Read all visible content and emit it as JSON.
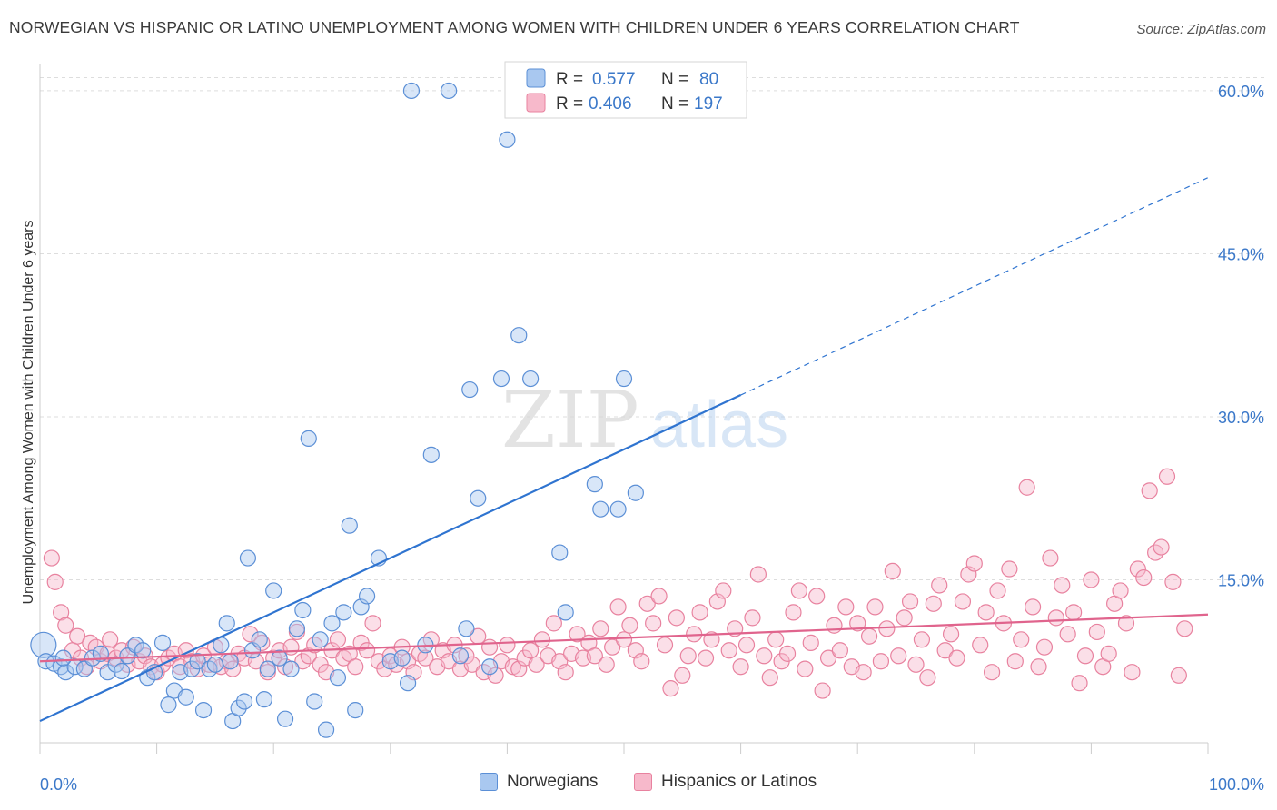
{
  "header": {
    "title": "NORWEGIAN VS HISPANIC OR LATINO UNEMPLOYMENT AMONG WOMEN WITH CHILDREN UNDER 6 YEARS CORRELATION CHART",
    "source": "Source: ZipAtlas.com"
  },
  "watermark": {
    "zip": "ZIP",
    "atlas": "atlas"
  },
  "colors": {
    "norwegians_fill": "#a9c8f0",
    "norwegians_stroke": "#5b8fd6",
    "norwegians_line": "#2f74d0",
    "hispanics_fill": "#f7b9cb",
    "hispanics_stroke": "#e8829f",
    "hispanics_line": "#e0648d",
    "axis_text": "#3b78c9",
    "grid": "#dddddd"
  },
  "stats_legend": {
    "rows": [
      {
        "r_label": "R =",
        "r_value": "0.577",
        "n_label": "N =",
        "n_value": "80"
      },
      {
        "r_label": "R =",
        "r_value": "0.406",
        "n_label": "N =",
        "n_value": "197"
      }
    ]
  },
  "chart_data": {
    "type": "scatter",
    "title": "NORWEGIAN VS HISPANIC OR LATINO UNEMPLOYMENT AMONG WOMEN WITH CHILDREN UNDER 6 YEARS CORRELATION CHART",
    "xlabel": "",
    "ylabel": "Unemployment Among Women with Children Under 6 years",
    "xlim": [
      0,
      100
    ],
    "ylim": [
      0,
      62.5
    ],
    "x_tick_labels": [
      {
        "value": 0,
        "label": "0.0%"
      },
      {
        "value": 100,
        "label": "100.0%"
      }
    ],
    "y_tick_labels": [
      {
        "value": 15,
        "label": "15.0%"
      },
      {
        "value": 30,
        "label": "30.0%"
      },
      {
        "value": 45,
        "label": "45.0%"
      },
      {
        "value": 60,
        "label": "60.0%"
      }
    ],
    "grid": true,
    "legend_position": "bottom",
    "series": [
      {
        "name": "Norwegians",
        "r": 0.577,
        "n": 80,
        "trend": {
          "x0": 0,
          "y0": 2.0,
          "x1": 60,
          "y1": 32.0,
          "dash_to_x": 100,
          "dash_to_y": 52.0
        },
        "points": [
          [
            0.3,
            9.0
          ],
          [
            0.5,
            7.5
          ],
          [
            1.2,
            7.3
          ],
          [
            1.8,
            7.0
          ],
          [
            2.2,
            6.5
          ],
          [
            3.0,
            7.0
          ],
          [
            3.8,
            6.8
          ],
          [
            4.5,
            7.8
          ],
          [
            5.2,
            8.2
          ],
          [
            5.8,
            6.5
          ],
          [
            6.5,
            7.2
          ],
          [
            7.0,
            6.6
          ],
          [
            7.5,
            8.0
          ],
          [
            8.2,
            9.0
          ],
          [
            8.8,
            8.5
          ],
          [
            9.2,
            6.0
          ],
          [
            9.8,
            6.5
          ],
          [
            10.5,
            9.2
          ],
          [
            11.0,
            3.5
          ],
          [
            11.5,
            4.8
          ],
          [
            12.0,
            6.5
          ],
          [
            12.5,
            4.2
          ],
          [
            13.0,
            6.8
          ],
          [
            13.5,
            7.5
          ],
          [
            14.0,
            3.0
          ],
          [
            14.5,
            6.8
          ],
          [
            15.0,
            7.2
          ],
          [
            15.5,
            9.0
          ],
          [
            16.0,
            11.0
          ],
          [
            16.3,
            7.5
          ],
          [
            16.5,
            2.0
          ],
          [
            17.0,
            3.2
          ],
          [
            17.5,
            3.8
          ],
          [
            17.8,
            17.0
          ],
          [
            18.2,
            8.5
          ],
          [
            18.8,
            9.5
          ],
          [
            19.2,
            4.0
          ],
          [
            19.5,
            6.8
          ],
          [
            20.0,
            14.0
          ],
          [
            20.5,
            7.8
          ],
          [
            21.0,
            2.2
          ],
          [
            21.5,
            6.8
          ],
          [
            22.0,
            10.5
          ],
          [
            22.5,
            12.2
          ],
          [
            23.0,
            28.0
          ],
          [
            23.5,
            3.8
          ],
          [
            24.0,
            9.5
          ],
          [
            24.5,
            1.2
          ],
          [
            25.0,
            11.0
          ],
          [
            25.5,
            6.0
          ],
          [
            26.0,
            12.0
          ],
          [
            26.5,
            20.0
          ],
          [
            27.0,
            3.0
          ],
          [
            27.5,
            12.5
          ],
          [
            28.0,
            13.5
          ],
          [
            29.0,
            17.0
          ],
          [
            30.0,
            7.5
          ],
          [
            31.0,
            7.8
          ],
          [
            31.5,
            5.5
          ],
          [
            31.8,
            60.0
          ],
          [
            33.0,
            9.0
          ],
          [
            33.5,
            26.5
          ],
          [
            35.0,
            60.0
          ],
          [
            36.0,
            8.0
          ],
          [
            36.5,
            10.5
          ],
          [
            36.8,
            32.5
          ],
          [
            37.5,
            22.5
          ],
          [
            38.5,
            7.0
          ],
          [
            39.5,
            33.5
          ],
          [
            40.0,
            55.5
          ],
          [
            41.0,
            37.5
          ],
          [
            42.0,
            33.5
          ],
          [
            44.5,
            17.5
          ],
          [
            45.0,
            12.0
          ],
          [
            47.5,
            23.8
          ],
          [
            48.0,
            21.5
          ],
          [
            49.5,
            21.5
          ],
          [
            50.0,
            33.5
          ],
          [
            51.0,
            23.0
          ],
          [
            2.0,
            7.8
          ]
        ]
      },
      {
        "name": "Hispanics or Latinos",
        "r": 0.406,
        "n": 197,
        "trend": {
          "x0": 0,
          "y0": 7.5,
          "x1": 100,
          "y1": 11.8
        },
        "points": [
          [
            1.0,
            17.0
          ],
          [
            1.3,
            14.8
          ],
          [
            1.8,
            12.0
          ],
          [
            2.2,
            10.8
          ],
          [
            2.8,
            8.5
          ],
          [
            3.2,
            9.8
          ],
          [
            3.5,
            7.8
          ],
          [
            4.0,
            7.0
          ],
          [
            4.3,
            9.2
          ],
          [
            4.8,
            8.8
          ],
          [
            5.2,
            7.5
          ],
          [
            5.8,
            8.2
          ],
          [
            6.0,
            9.5
          ],
          [
            6.5,
            7.8
          ],
          [
            7.0,
            8.5
          ],
          [
            7.5,
            7.2
          ],
          [
            8.0,
            8.8
          ],
          [
            8.5,
            7.5
          ],
          [
            9.0,
            8.0
          ],
          [
            9.5,
            7.0
          ],
          [
            10.0,
            6.5
          ],
          [
            10.5,
            7.2
          ],
          [
            11.0,
            7.8
          ],
          [
            11.5,
            8.2
          ],
          [
            12.0,
            7.0
          ],
          [
            12.5,
            8.5
          ],
          [
            13.0,
            7.5
          ],
          [
            13.5,
            6.8
          ],
          [
            14.0,
            8.0
          ],
          [
            14.5,
            7.2
          ],
          [
            15.0,
            8.8
          ],
          [
            15.5,
            7.0
          ],
          [
            16.0,
            7.5
          ],
          [
            16.5,
            6.8
          ],
          [
            17.0,
            8.2
          ],
          [
            17.5,
            7.8
          ],
          [
            18.0,
            10.0
          ],
          [
            18.5,
            7.5
          ],
          [
            19.0,
            9.2
          ],
          [
            19.5,
            6.5
          ],
          [
            20.0,
            7.8
          ],
          [
            20.5,
            8.5
          ],
          [
            21.0,
            7.0
          ],
          [
            21.5,
            8.8
          ],
          [
            22.0,
            10.2
          ],
          [
            22.5,
            7.5
          ],
          [
            23.0,
            8.0
          ],
          [
            23.5,
            9.0
          ],
          [
            24.0,
            7.2
          ],
          [
            24.5,
            6.5
          ],
          [
            25.0,
            8.5
          ],
          [
            25.5,
            9.5
          ],
          [
            26.0,
            7.8
          ],
          [
            26.5,
            8.2
          ],
          [
            27.0,
            7.0
          ],
          [
            27.5,
            9.2
          ],
          [
            28.0,
            8.5
          ],
          [
            28.5,
            11.0
          ],
          [
            29.0,
            7.5
          ],
          [
            29.5,
            6.8
          ],
          [
            30.0,
            8.0
          ],
          [
            30.5,
            7.2
          ],
          [
            31.0,
            8.8
          ],
          [
            31.5,
            7.5
          ],
          [
            32.0,
            6.5
          ],
          [
            32.5,
            8.2
          ],
          [
            33.0,
            7.8
          ],
          [
            33.5,
            9.5
          ],
          [
            34.0,
            7.0
          ],
          [
            34.5,
            8.5
          ],
          [
            35.0,
            7.5
          ],
          [
            35.5,
            9.0
          ],
          [
            36.0,
            6.8
          ],
          [
            36.5,
            8.0
          ],
          [
            37.0,
            7.2
          ],
          [
            37.5,
            9.8
          ],
          [
            38.0,
            6.5
          ],
          [
            38.5,
            8.8
          ],
          [
            39.0,
            6.2
          ],
          [
            39.5,
            7.5
          ],
          [
            40.0,
            9.0
          ],
          [
            40.5,
            7.0
          ],
          [
            41.0,
            6.8
          ],
          [
            41.5,
            7.8
          ],
          [
            42.0,
            8.5
          ],
          [
            42.5,
            7.2
          ],
          [
            43.0,
            9.5
          ],
          [
            43.5,
            8.0
          ],
          [
            44.0,
            11.0
          ],
          [
            44.5,
            7.5
          ],
          [
            45.0,
            6.5
          ],
          [
            45.5,
            8.2
          ],
          [
            46.0,
            10.0
          ],
          [
            46.5,
            7.8
          ],
          [
            47.0,
            9.2
          ],
          [
            47.5,
            8.0
          ],
          [
            48.0,
            10.5
          ],
          [
            48.5,
            7.2
          ],
          [
            49.0,
            8.8
          ],
          [
            49.5,
            12.5
          ],
          [
            50.0,
            9.5
          ],
          [
            50.5,
            10.8
          ],
          [
            51.0,
            8.5
          ],
          [
            51.5,
            7.5
          ],
          [
            52.0,
            12.8
          ],
          [
            52.5,
            11.0
          ],
          [
            53.0,
            13.5
          ],
          [
            53.5,
            9.0
          ],
          [
            54.0,
            5.0
          ],
          [
            54.5,
            11.5
          ],
          [
            55.0,
            6.2
          ],
          [
            55.5,
            8.0
          ],
          [
            56.0,
            10.0
          ],
          [
            56.5,
            12.0
          ],
          [
            57.0,
            7.8
          ],
          [
            57.5,
            9.5
          ],
          [
            58.0,
            13.0
          ],
          [
            58.5,
            14.0
          ],
          [
            59.0,
            8.5
          ],
          [
            59.5,
            10.5
          ],
          [
            60.0,
            7.0
          ],
          [
            60.5,
            9.0
          ],
          [
            61.0,
            11.5
          ],
          [
            61.5,
            15.5
          ],
          [
            62.0,
            8.0
          ],
          [
            62.5,
            6.0
          ],
          [
            63.0,
            9.5
          ],
          [
            63.5,
            7.5
          ],
          [
            64.0,
            8.2
          ],
          [
            64.5,
            12.0
          ],
          [
            65.0,
            14.0
          ],
          [
            65.5,
            6.8
          ],
          [
            66.0,
            9.2
          ],
          [
            66.5,
            13.5
          ],
          [
            67.0,
            4.8
          ],
          [
            67.5,
            7.8
          ],
          [
            68.0,
            10.8
          ],
          [
            68.5,
            8.5
          ],
          [
            69.0,
            12.5
          ],
          [
            69.5,
            7.0
          ],
          [
            70.0,
            11.0
          ],
          [
            70.5,
            6.5
          ],
          [
            71.0,
            9.8
          ],
          [
            71.5,
            12.5
          ],
          [
            72.0,
            7.5
          ],
          [
            72.5,
            10.5
          ],
          [
            73.0,
            15.8
          ],
          [
            73.5,
            8.0
          ],
          [
            74.0,
            11.5
          ],
          [
            74.5,
            13.0
          ],
          [
            75.0,
            7.2
          ],
          [
            75.5,
            9.5
          ],
          [
            76.0,
            6.0
          ],
          [
            76.5,
            12.8
          ],
          [
            77.0,
            14.5
          ],
          [
            77.5,
            8.5
          ],
          [
            78.0,
            10.0
          ],
          [
            78.5,
            7.8
          ],
          [
            79.0,
            13.0
          ],
          [
            79.5,
            15.5
          ],
          [
            80.0,
            16.5
          ],
          [
            80.5,
            9.0
          ],
          [
            81.0,
            12.0
          ],
          [
            81.5,
            6.5
          ],
          [
            82.0,
            14.0
          ],
          [
            82.5,
            11.0
          ],
          [
            83.0,
            16.0
          ],
          [
            83.5,
            7.5
          ],
          [
            84.0,
            9.5
          ],
          [
            84.5,
            23.5
          ],
          [
            85.0,
            12.5
          ],
          [
            85.5,
            7.0
          ],
          [
            86.0,
            8.8
          ],
          [
            86.5,
            17.0
          ],
          [
            87.0,
            11.5
          ],
          [
            87.5,
            14.5
          ],
          [
            88.0,
            10.0
          ],
          [
            88.5,
            12.0
          ],
          [
            89.0,
            5.5
          ],
          [
            89.5,
            8.0
          ],
          [
            90.0,
            15.0
          ],
          [
            90.5,
            10.2
          ],
          [
            91.0,
            7.0
          ],
          [
            91.5,
            8.2
          ],
          [
            92.0,
            12.8
          ],
          [
            92.5,
            14.0
          ],
          [
            93.0,
            11.0
          ],
          [
            93.5,
            6.5
          ],
          [
            94.0,
            16.0
          ],
          [
            94.5,
            15.2
          ],
          [
            95.0,
            23.2
          ],
          [
            95.5,
            17.5
          ],
          [
            96.0,
            18.0
          ],
          [
            96.5,
            24.5
          ],
          [
            97.0,
            14.8
          ],
          [
            97.5,
            6.2
          ],
          [
            98.0,
            10.5
          ]
        ]
      }
    ]
  },
  "bottom_legend": {
    "items": [
      {
        "label": "Norwegians"
      },
      {
        "label": "Hispanics or Latinos"
      }
    ]
  }
}
